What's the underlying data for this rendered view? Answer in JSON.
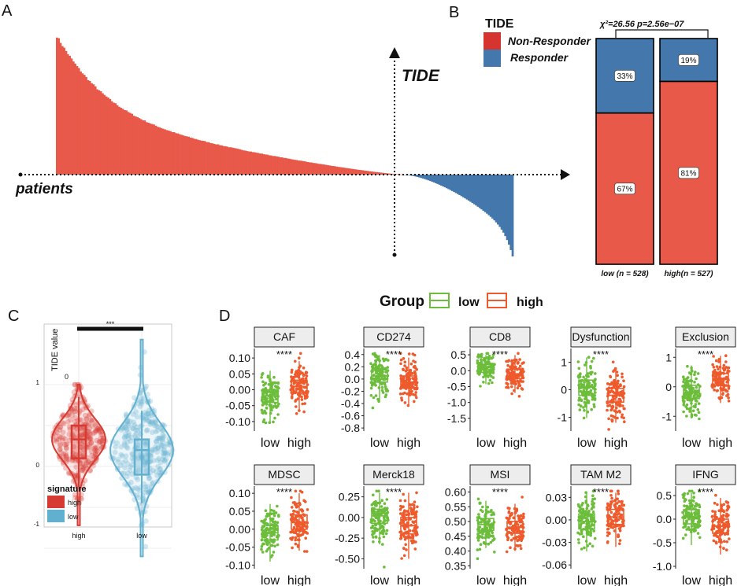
{
  "panel_labels": [
    "A",
    "B",
    "C",
    "D"
  ],
  "colors": {
    "red": "#e8594a",
    "blue": "#4478ad",
    "violin_red": "#d63b33",
    "violin_blue": "#62b0cf",
    "green": "#6cbd3b",
    "orange": "#ee5a2c",
    "bar_outline": "#000000"
  },
  "chart_data": [
    {
      "id": "A",
      "type": "bar",
      "title": "",
      "xlabel": "patients",
      "ylabel": "TIDE",
      "n_bars": 250,
      "n_positive": 190,
      "series": [
        {
          "name": "Non-Responder (TIDE > 0)",
          "color": "#e8594a",
          "start": 1.0,
          "shape": "decreasing"
        },
        {
          "name": "Responder (TIDE < 0)",
          "color": "#4478ad",
          "end": -0.85,
          "shape": "decreasing"
        }
      ]
    },
    {
      "id": "B",
      "type": "bar",
      "stacked": true,
      "legend_title": "TIDE",
      "legend_items": [
        "Non-Responder",
        "Responder"
      ],
      "stat_text": "χ²=26.56  p=2.56e−07",
      "categories": [
        "low (n = 528)",
        "high(n = 527)"
      ],
      "series": [
        {
          "name": "Non-Responder",
          "values": [
            67,
            81
          ],
          "labels": [
            "67%",
            "81%"
          ]
        },
        {
          "name": "Responder",
          "values": [
            33,
            19
          ],
          "labels": [
            "33%",
            "19%"
          ]
        }
      ]
    },
    {
      "id": "C",
      "type": "violin",
      "ylabel": "TIDE value",
      "significance": "***",
      "categories": [
        "high",
        "low"
      ],
      "yticks": [
        "1",
        "0",
        "-1"
      ],
      "extra_label": "0",
      "legend_title": "signature",
      "legend_items": [
        "high",
        "low"
      ],
      "box_stats": [
        {
          "group": "high",
          "q1": 0.1,
          "median": 0.33,
          "q3": 0.5
        },
        {
          "group": "low",
          "q1": -0.1,
          "median": 0.2,
          "q3": 0.33
        }
      ]
    },
    {
      "id": "D",
      "type": "boxplot",
      "legend_title": "Group",
      "legend_items": [
        "low",
        "high"
      ],
      "group_labels": [
        "low",
        "high"
      ],
      "panels": [
        {
          "name": "CAF",
          "yticks": [
            "0.10",
            "0.05",
            "0.00",
            "-0.05",
            "-0.10"
          ],
          "ylim": [
            -0.13,
            0.13
          ],
          "low": {
            "median": -0.02,
            "q1": -0.04,
            "q3": 0.0
          },
          "high": {
            "median": 0.01,
            "q1": -0.01,
            "q3": 0.03
          },
          "sig": "****"
        },
        {
          "name": "CD274",
          "yticks": [
            "0.4",
            "0.2",
            "0.0",
            "-0.2",
            "-0.4",
            "-0.6",
            "-0.8"
          ],
          "ylim": [
            -0.85,
            0.5
          ],
          "low": {
            "median": 0.05,
            "q1": -0.05,
            "q3": 0.15
          },
          "high": {
            "median": -0.05,
            "q1": -0.15,
            "q3": 0.05
          },
          "sig": "****"
        },
        {
          "name": "CD8",
          "yticks": [
            "0.5",
            "0.0",
            "-0.5",
            "-1.0",
            "-1.5"
          ],
          "ylim": [
            -1.9,
            0.7
          ],
          "low": {
            "median": 0.1,
            "q1": -0.05,
            "q3": 0.2
          },
          "high": {
            "median": -0.1,
            "q1": -0.25,
            "q3": 0.05
          },
          "sig": "****"
        },
        {
          "name": "Dysfunction",
          "yticks": [
            "1",
            "0",
            "-1"
          ],
          "ylim": [
            -1.5,
            1.5
          ],
          "low": {
            "median": 0.1,
            "q1": -0.2,
            "q3": 0.35
          },
          "high": {
            "median": -0.2,
            "q1": -0.45,
            "q3": 0.05
          },
          "sig": "****"
        },
        {
          "name": "Exclusion",
          "yticks": [
            "1",
            "0",
            "-1"
          ],
          "ylim": [
            -1.5,
            1.3
          ],
          "low": {
            "median": -0.2,
            "q1": -0.4,
            "q3": 0.05
          },
          "high": {
            "median": 0.25,
            "q1": 0.05,
            "q3": 0.45
          },
          "sig": "****"
        },
        {
          "name": "MDSC",
          "yticks": [
            "0.10",
            "0.05",
            "0.00",
            "-0.05",
            "-0.10"
          ],
          "ylim": [
            -0.11,
            0.12
          ],
          "low": {
            "median": -0.01,
            "q1": -0.03,
            "q3": 0.01
          },
          "high": {
            "median": 0.02,
            "q1": 0.0,
            "q3": 0.04
          },
          "sig": "****"
        },
        {
          "name": "Merck18",
          "yticks": [
            "0.25",
            "0.00",
            "-0.25",
            "-0.50"
          ],
          "ylim": [
            -0.62,
            0.38
          ],
          "low": {
            "median": 0.02,
            "q1": -0.07,
            "q3": 0.1
          },
          "high": {
            "median": -0.1,
            "q1": -0.2,
            "q3": 0.0
          },
          "sig": "****"
        },
        {
          "name": "MSI",
          "yticks": [
            "0.60",
            "0.55",
            "0.50",
            "0.45",
            "0.40",
            "0.35"
          ],
          "ylim": [
            0.34,
            0.62
          ],
          "low": {
            "median": 0.49,
            "q1": 0.47,
            "q3": 0.51
          },
          "high": {
            "median": 0.48,
            "q1": 0.46,
            "q3": 0.5
          },
          "sig": "****"
        },
        {
          "name": "TAM M2",
          "yticks": [
            "0.03",
            "0.00",
            "-0.03",
            "-0.06"
          ],
          "ylim": [
            -0.065,
            0.045
          ],
          "low": {
            "median": -0.002,
            "q1": -0.012,
            "q3": 0.008
          },
          "high": {
            "median": 0.004,
            "q1": -0.006,
            "q3": 0.014
          },
          "sig": "****"
        },
        {
          "name": "IFNG",
          "yticks": [
            "0.5",
            "0.0",
            "-0.5",
            "-1.0"
          ],
          "ylim": [
            -1.05,
            0.7
          ],
          "low": {
            "median": 0.05,
            "q1": -0.1,
            "q3": 0.2
          },
          "high": {
            "median": -0.15,
            "q1": -0.3,
            "q3": 0.0
          },
          "sig": "****"
        }
      ]
    }
  ]
}
